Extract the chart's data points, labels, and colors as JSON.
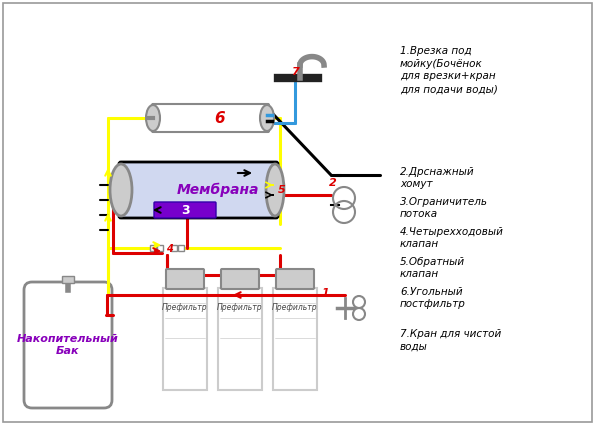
{
  "yellow": "#FFFF00",
  "red": "#DD0000",
  "blue": "#3399DD",
  "black": "#000000",
  "gray": "#888888",
  "lgray": "#cccccc",
  "purple": "#8800BB",
  "darkpurple": "#6600AA",
  "white": "#FFFFFF",
  "membrane_fill": "#d0d8f0",
  "restrictor_fill": "#7700CC",
  "tank_fill": "#ffffff",
  "membrane_label": "Мембрана",
  "tank_label": "Накопительный\nБак",
  "prefilter_label": "Префильтр",
  "legend": [
    "1.Врезка под\nмойку(Бочёнок\nдля врезки+кран\nдля подачи воды)",
    "2.Дренажный\nхомут",
    "3.Ограничитель\nпотока",
    "4.Четырехходовый\nклапан",
    "5.Обратный\nклапан",
    "6.Угольный\nпостфильтр",
    "7.Кран для чистой\nводы"
  ]
}
